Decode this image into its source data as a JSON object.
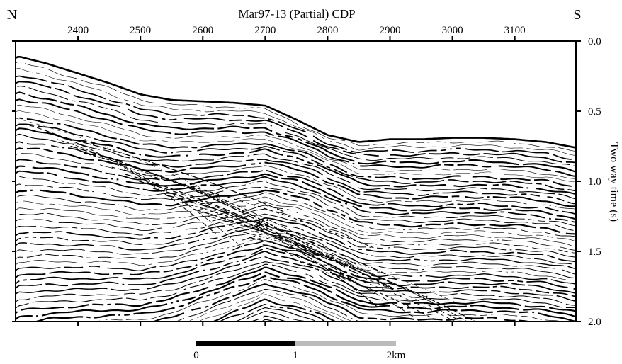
{
  "chart_data": {
    "type": "seismic_section",
    "title": "Mar97-13 (Partial) CDP",
    "left_label": "N",
    "right_label": "S",
    "ylabel": "Two way time (s)",
    "x_ticks": [
      2400,
      2500,
      2600,
      2700,
      2800,
      2900,
      3000,
      3100
    ],
    "xlim": [
      2300,
      3198
    ],
    "y_ticks": [
      "0.0",
      "0.5",
      "1.0",
      "1.5",
      "2.0"
    ],
    "ylim": [
      0.0,
      2.0
    ],
    "seafloor": {
      "cdp": [
        2300,
        2305,
        2350,
        2400,
        2450,
        2500,
        2550,
        2600,
        2650,
        2700,
        2750,
        2800,
        2850,
        2900,
        2950,
        3000,
        3050,
        3100,
        3150,
        3198
      ],
      "twt": [
        0.12,
        0.11,
        0.16,
        0.23,
        0.3,
        0.38,
        0.42,
        0.43,
        0.44,
        0.46,
        0.56,
        0.67,
        0.72,
        0.7,
        0.7,
        0.69,
        0.69,
        0.7,
        0.72,
        0.76
      ]
    },
    "scale_bar": {
      "ticks": [
        "0",
        "1",
        "2km"
      ],
      "segment_colors": [
        "#000000",
        "#bbbbbb"
      ]
    },
    "colors": {
      "reflector": "#000000",
      "background": "#ffffff",
      "scale_light": "#bbbbbb"
    }
  }
}
